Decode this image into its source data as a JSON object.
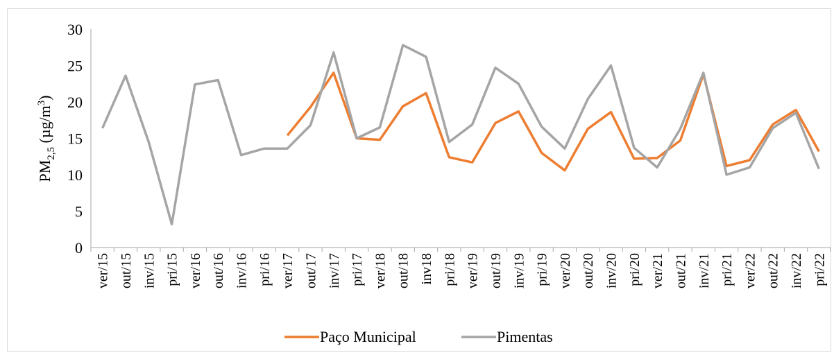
{
  "chart_data": {
    "type": "line",
    "ylabel": [
      "PM",
      "2,5",
      " (µg/m",
      "3",
      ")"
    ],
    "categories": [
      "ver/15",
      "out/15",
      "inv/15",
      "pri/15",
      "ver/16",
      "out/16",
      "inv/16",
      "pri/16",
      "ver/17",
      "out/17",
      "inv/17",
      "pri/17",
      "ver/18",
      "out/18",
      "inv18",
      "pri/18",
      "ver/19",
      "out/19",
      "inv/19",
      "pri/19",
      "ver/20",
      "out/20",
      "inv/20",
      "pri/20",
      "ver/21",
      "out/21",
      "inv/21",
      "pri/21",
      "ver/22",
      "out/22",
      "inv/22",
      "pri/22"
    ],
    "series": [
      {
        "name": "Paço Municipal",
        "color": "#ed7d31",
        "values": [
          null,
          null,
          null,
          null,
          null,
          null,
          null,
          null,
          15.4,
          19.3,
          24.0,
          15.0,
          14.8,
          19.4,
          21.2,
          12.4,
          11.7,
          17.1,
          18.7,
          13.0,
          10.6,
          16.3,
          18.6,
          12.2,
          12.3,
          14.7,
          23.8,
          11.2,
          12.0,
          16.9,
          18.9,
          13.2
        ]
      },
      {
        "name": "Pimentas",
        "color": "#a5a5a5",
        "values": [
          16.4,
          23.6,
          14.5,
          3.2,
          22.4,
          23.0,
          12.7,
          13.6,
          13.6,
          16.8,
          26.8,
          15.0,
          16.5,
          27.8,
          26.2,
          14.5,
          16.9,
          24.7,
          22.5,
          16.6,
          13.6,
          20.4,
          25.0,
          13.7,
          11.0,
          16.3,
          24.0,
          10.0,
          11.0,
          16.4,
          18.5,
          10.8
        ]
      }
    ],
    "ylim": [
      0,
      30
    ],
    "yticks": [
      0,
      5,
      10,
      15,
      20,
      25,
      30
    ],
    "grid": false,
    "legend": "bottom"
  }
}
